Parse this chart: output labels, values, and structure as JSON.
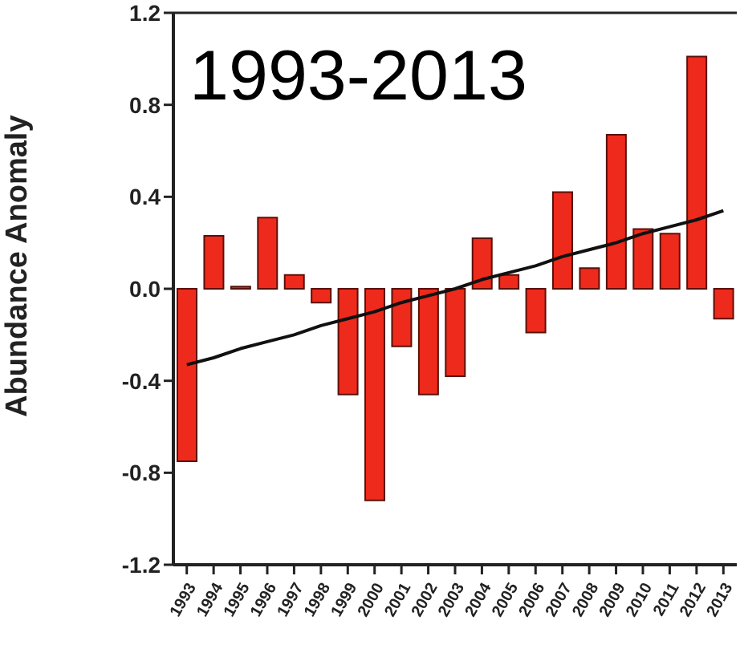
{
  "chart_data": {
    "type": "bar",
    "title": "1993-2013",
    "ylabel": "Abundance Anomaly",
    "categories": [
      "1993",
      "1994",
      "1995",
      "1996",
      "1997",
      "1998",
      "1999",
      "2000",
      "2001",
      "2002",
      "2003",
      "2004",
      "2005",
      "2006",
      "2007",
      "2008",
      "2009",
      "2010",
      "2011",
      "2012",
      "2013"
    ],
    "series": [
      {
        "color": "#ee2a1c",
        "values": [
          -0.75,
          0.23,
          0.01,
          0.31,
          0.06,
          -0.06,
          -0.46,
          -0.92,
          -0.25,
          -0.46,
          -0.38,
          0.22,
          0.06,
          -0.19,
          0.42,
          0.09,
          0.67,
          0.26,
          0.24,
          1.01,
          -0.13
        ]
      },
      {
        "type": "line",
        "color": "#111111",
        "values": [
          -0.33,
          -0.3,
          -0.26,
          -0.23,
          -0.2,
          -0.16,
          -0.13,
          -0.1,
          -0.06,
          -0.03,
          0.0,
          0.04,
          0.07,
          0.1,
          0.14,
          0.17,
          0.2,
          0.24,
          0.27,
          0.3,
          0.34
        ]
      }
    ],
    "ylim": [
      -1.2,
      1.2
    ],
    "yticks": [
      -1.2,
      -0.8,
      -0.4,
      {
        "value": 0,
        "label": "0.0"
      },
      0.4,
      0.8,
      1.2
    ]
  }
}
